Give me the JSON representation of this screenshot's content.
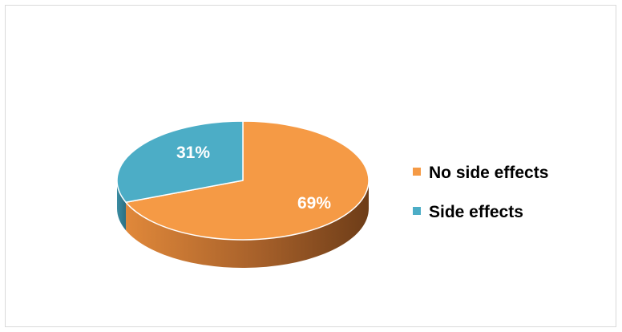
{
  "chart_data": {
    "type": "pie",
    "title": "",
    "categories": [
      "No side effects",
      "Side effects"
    ],
    "values": [
      69,
      31
    ],
    "unit": "%",
    "data_labels": [
      "69%",
      "31%"
    ],
    "colors": [
      "#f59a45",
      "#4cadc6"
    ],
    "side_colors": [
      "#c7762d",
      "#3a8ca2"
    ],
    "legend": {
      "position": "right",
      "entries": [
        "No side effects",
        "Side effects"
      ]
    },
    "style": "3d"
  }
}
